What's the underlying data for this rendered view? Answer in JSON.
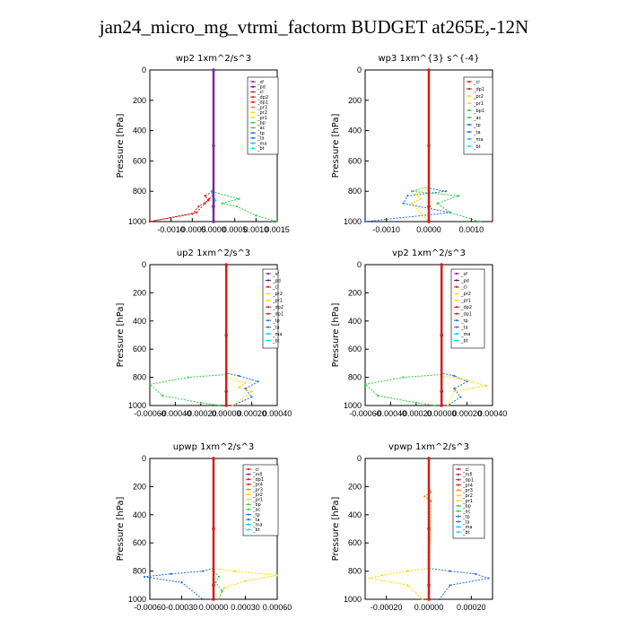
{
  "title": "jan24_micro_mg_vtrmi_factorm  BUDGET at265E,-12N",
  "colors": {
    "sf": "#7B2A9E",
    "pd": "#4A148C",
    "cl": "#D81B1B",
    "dp2": "#D81B1B",
    "dp1": "#D81B1B",
    "pr3": "#FF8C00",
    "pr2": "#FFD700",
    "pr1": "#FFD700",
    "pr4": "#D81B1B",
    "bp": "#2ECC40",
    "bp1": "#2ECC40",
    "ac": "#2ECC40",
    "tp": "#1E6FD9",
    "ta": "#1E6FD9",
    "ma": "#00BFFF",
    "bt": "#00E5FF",
    "mfl": "#7B2A9E"
  },
  "chart_data": [
    {
      "type": "line",
      "title": "wp2  1xm^2/s^3",
      "ylabel": "Pressure [hPa]",
      "ylim": [
        1000,
        0
      ],
      "xlim": [
        -0.0015,
        0.0015
      ],
      "xticks": [
        "-0.0010",
        "-0.0005",
        "0.0000",
        "0.0005",
        "0.0010",
        "0.0015"
      ],
      "xtick_values": [
        -0.001,
        -0.0005,
        0,
        0.0005,
        0.001,
        0.0015
      ],
      "yticks": [
        "0",
        "200",
        "400",
        "600",
        "800",
        "1000"
      ],
      "legend": [
        "_sf",
        "_pd",
        "_cl",
        "_dp2",
        "_dp1",
        "_pr3",
        "_pr2",
        "_pr1",
        "_bp",
        "_ac",
        "_tp",
        "_ta",
        "_ma",
        "_bt"
      ],
      "series": [
        {
          "name": "_ac",
          "x": [
            0,
            0,
            -5e-05,
            0.0006,
            0.0002,
            0.00055,
            0.001,
            0.0015
          ],
          "y": [
            0,
            780,
            800,
            850,
            880,
            900,
            960,
            1000
          ]
        },
        {
          "name": "_cl",
          "x": [
            0,
            0,
            -0.0002,
            -0.00012,
            -0.00035,
            -0.0005,
            -0.0015
          ],
          "y": [
            0,
            800,
            830,
            860,
            900,
            950,
            1000
          ]
        },
        {
          "name": "_dp1",
          "x": [
            0,
            0,
            -0.0001,
            -0.0002,
            -0.0004,
            -0.0015
          ],
          "y": [
            0,
            820,
            850,
            880,
            940,
            1000
          ]
        },
        {
          "name": "_bt",
          "x": [
            0,
            0,
            -4e-05,
            5e-05,
            -3e-05,
            2e-05
          ],
          "y": [
            0,
            780,
            810,
            860,
            900,
            1000
          ]
        },
        {
          "name": "_sf",
          "x": [
            0,
            0,
            0,
            0
          ],
          "y": [
            0,
            500,
            900,
            1000
          ]
        }
      ]
    },
    {
      "type": "line",
      "title": "wp3  1xm^{3} s^{-4}",
      "ylabel": "Pressure [hPa]",
      "ylim": [
        1000,
        0
      ],
      "xlim": [
        -0.0015,
        0.0015
      ],
      "xticks": [
        "-0.0010",
        "0.0000",
        "0.0010"
      ],
      "xtick_values": [
        -0.001,
        0,
        0.001
      ],
      "yticks": [
        "0",
        "200",
        "400",
        "600",
        "800",
        "1000"
      ],
      "legend": [
        "_cl",
        "_dp1",
        "_pr2",
        "_pr1",
        "_bp1",
        "_ac",
        "_tp",
        "_ta",
        "_ma",
        "_bt"
      ],
      "series": [
        {
          "name": "_ta",
          "x": [
            0,
            0,
            0.0004,
            -0.0005,
            -0.0006,
            0.0005,
            -0.0015
          ],
          "y": [
            0,
            780,
            800,
            830,
            880,
            940,
            1000
          ]
        },
        {
          "name": "_ac",
          "x": [
            0,
            0,
            -0.0004,
            0.0007,
            0.0002,
            0.0005,
            0.0012
          ],
          "y": [
            0,
            770,
            800,
            830,
            880,
            940,
            1000
          ]
        },
        {
          "name": "_pr2",
          "x": [
            0,
            0,
            -0.0003,
            -0.0002,
            -0.0004,
            0
          ],
          "y": [
            0,
            780,
            820,
            850,
            880,
            1000
          ]
        },
        {
          "name": "_cl",
          "x": [
            0,
            0,
            0,
            0
          ],
          "y": [
            0,
            500,
            900,
            1000
          ]
        }
      ]
    },
    {
      "type": "line",
      "title": "up2  1xm^2/s^3",
      "ylabel": "Pressure [hPa]",
      "ylim": [
        1000,
        0
      ],
      "xlim": [
        -0.0006,
        0.0004
      ],
      "xticks": [
        "-0.00060",
        "-0.00040",
        "-0.00020",
        "0.00000",
        "0.00020",
        "0.00040"
      ],
      "xtick_values": [
        -0.0006,
        -0.0004,
        -0.0002,
        0,
        0.0002,
        0.0004
      ],
      "yticks": [
        "0",
        "200",
        "400",
        "600",
        "800",
        "1000"
      ],
      "legend": [
        "_sf",
        "_pd",
        "_cl",
        "_pr2",
        "_pr1",
        "_dp2",
        "_dp1",
        "_tp",
        "_ta",
        "_ma",
        "_bt"
      ],
      "series": [
        {
          "name": "_ac",
          "x": [
            0,
            0,
            -0.0003,
            -0.0006,
            -0.0005,
            -0.0002,
            -5e-05
          ],
          "y": [
            0,
            780,
            800,
            850,
            930,
            980,
            1000
          ]
        },
        {
          "name": "_tp",
          "x": [
            0,
            0,
            0.0001,
            0.00025,
            0.00015,
            0.0002,
            5e-05
          ],
          "y": [
            0,
            770,
            790,
            830,
            880,
            940,
            1000
          ]
        },
        {
          "name": "_pr2",
          "x": [
            0,
            0,
            0.00015,
            0.0001,
            0.0002,
            5e-05
          ],
          "y": [
            0,
            800,
            840,
            870,
            900,
            1000
          ]
        },
        {
          "name": "_cl",
          "x": [
            0,
            0,
            0,
            0
          ],
          "y": [
            0,
            500,
            900,
            1000
          ]
        }
      ]
    },
    {
      "type": "line",
      "title": "vp2  1xm^2/s^3",
      "ylabel": "Pressure [hPa]",
      "ylim": [
        1000,
        0
      ],
      "xlim": [
        -0.0006,
        0.0004
      ],
      "xticks": [
        "-0.00060",
        "-0.00040",
        "-0.00020",
        "0.00000",
        "0.00020",
        "0.00040"
      ],
      "xtick_values": [
        -0.0006,
        -0.0004,
        -0.0002,
        0,
        0.0002,
        0.0004
      ],
      "yticks": [
        "0",
        "200",
        "400",
        "600",
        "800",
        "1000"
      ],
      "legend": [
        "_sf",
        "_pd",
        "_cl",
        "_pr2",
        "_pr1",
        "_dp2",
        "_dp1",
        "_tp",
        "_ta",
        "_ma",
        "_bt"
      ],
      "series": [
        {
          "name": "_ac",
          "x": [
            0,
            0,
            -0.0003,
            -0.0006,
            -0.0005,
            -0.0002,
            -5e-05
          ],
          "y": [
            0,
            780,
            800,
            850,
            930,
            980,
            1000
          ]
        },
        {
          "name": "_tp",
          "x": [
            0,
            0,
            0.0001,
            0.0002,
            0.0001,
            0.00015,
            5e-05
          ],
          "y": [
            0,
            770,
            790,
            830,
            880,
            940,
            1000
          ]
        },
        {
          "name": "_pr2",
          "x": [
            0,
            0,
            0.0002,
            0.00035,
            0.0001,
            5e-05
          ],
          "y": [
            0,
            790,
            820,
            860,
            900,
            1000
          ]
        },
        {
          "name": "_cl",
          "x": [
            0,
            0,
            0,
            0
          ],
          "y": [
            0,
            500,
            900,
            1000
          ]
        }
      ]
    },
    {
      "type": "line",
      "title": "upwp  1xm^2/s^3",
      "ylabel": "Pressure [hPa]",
      "ylim": [
        1000,
        0
      ],
      "xlim": [
        -0.0006,
        0.0006
      ],
      "xticks": [
        "-0.00060",
        "-0.00030",
        "0.00000",
        "0.00030",
        "0.00060"
      ],
      "xtick_values": [
        -0.0006,
        -0.0003,
        0,
        0.0003,
        0.0006
      ],
      "yticks": [
        "0",
        "200",
        "400",
        "600",
        "800",
        "1000"
      ],
      "legend": [
        "_cl",
        "_mfl",
        "_dp1",
        "_pr4",
        "_pr3",
        "_pr2",
        "_pr1",
        "_bp",
        "_ac",
        "_tp",
        "_ta",
        "_ma",
        "_bt"
      ],
      "series": [
        {
          "name": "_tp",
          "x": [
            0,
            0,
            -0.0001,
            -0.0004,
            -0.00065,
            -0.0003,
            -0.0001
          ],
          "y": [
            0,
            780,
            800,
            820,
            840,
            880,
            1000
          ]
        },
        {
          "name": "_pr2",
          "x": [
            0,
            0,
            0.0002,
            0.0006,
            0.0003,
            0.0001,
            5e-05
          ],
          "y": [
            0,
            780,
            800,
            830,
            870,
            920,
            1000
          ]
        },
        {
          "name": "_bp",
          "x": [
            0,
            0,
            5e-05,
            2e-05,
            8e-05,
            5e-05
          ],
          "y": [
            0,
            800,
            840,
            880,
            940,
            1000
          ]
        },
        {
          "name": "_cl",
          "x": [
            0,
            0,
            0,
            0
          ],
          "y": [
            0,
            500,
            900,
            1000
          ]
        }
      ]
    },
    {
      "type": "line",
      "title": "vpwp  1xm^2/s^3",
      "ylabel": "Pressure [hPa]",
      "ylim": [
        1000,
        0
      ],
      "xlim": [
        -0.0003,
        0.0003
      ],
      "xticks": [
        "-0.00020",
        "0.00000",
        "0.00020"
      ],
      "xtick_values": [
        -0.0002,
        0,
        0.0002
      ],
      "yticks": [
        "0",
        "200",
        "400",
        "600",
        "800",
        "1000"
      ],
      "legend": [
        "_cl",
        "_mfl",
        "_dp1",
        "_pr4",
        "_pr3",
        "_pr2",
        "_pr1",
        "_bp",
        "_ac",
        "_tp",
        "_ta",
        "_ma",
        "_bt"
      ],
      "series": [
        {
          "name": "_tp",
          "x": [
            0,
            0,
            0.0001,
            0.00022,
            0.00028,
            0.0001,
            5e-05
          ],
          "y": [
            0,
            780,
            800,
            820,
            850,
            900,
            1000
          ]
        },
        {
          "name": "_pr2",
          "x": [
            0,
            0,
            -0.0001,
            -0.00022,
            -0.00028,
            -0.0001,
            -3e-05
          ],
          "y": [
            0,
            780,
            800,
            830,
            850,
            900,
            1000
          ]
        },
        {
          "name": "_pr3",
          "x": [
            0,
            0,
            1e-05,
            -2e-05,
            1e-05,
            0
          ],
          "y": [
            0,
            200,
            240,
            270,
            300,
            1000
          ]
        },
        {
          "name": "_cl",
          "x": [
            0,
            0,
            0,
            0
          ],
          "y": [
            0,
            500,
            900,
            1000
          ]
        }
      ]
    }
  ]
}
